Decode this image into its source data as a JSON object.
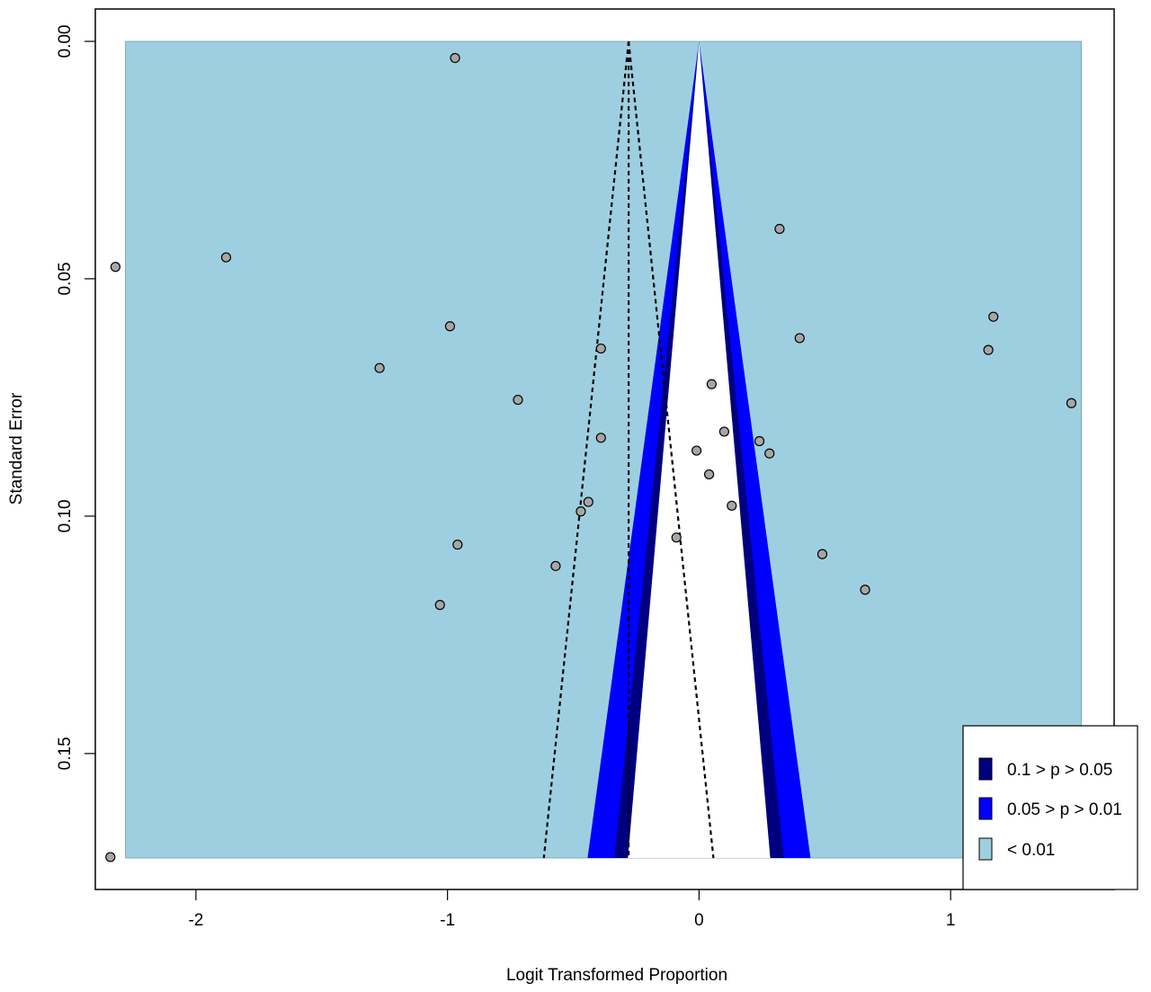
{
  "chart_data": {
    "type": "scatter",
    "subtype": "contour-enhanced funnel plot",
    "title": "",
    "xlabel": "Logit Transformed Proportion",
    "ylabel": "Standard Error",
    "xlim": [
      -2.4,
      1.65
    ],
    "ylim": [
      0.172,
      0
    ],
    "y_reversed": true,
    "x_ticks": [
      {
        "value": -2,
        "label": "-2"
      },
      {
        "value": -1,
        "label": "-1"
      },
      {
        "value": 0,
        "label": "0"
      },
      {
        "value": 1,
        "label": "1"
      }
    ],
    "y_ticks": [
      {
        "value": 0,
        "label": "0.00"
      },
      {
        "value": 0.05,
        "label": "0.05"
      },
      {
        "value": 0.1,
        "label": "0.10"
      },
      {
        "value": 0.15,
        "label": "0.15"
      }
    ],
    "funnel": {
      "center": 0,
      "se_max": 0.172,
      "x_range": [
        -2.28,
        1.52
      ],
      "z_values": {
        "p10": 1.645,
        "p05": 1.96,
        "p01": 2.576
      }
    },
    "pooled_estimate": {
      "x": -0.28,
      "line_style": "dotted",
      "ci_z": 1.96
    },
    "contours": [
      {
        "label": "0.1 > p > 0.05",
        "color": "#00007f"
      },
      {
        "label": "0.05 > p > 0.01",
        "color": "#0000ff"
      },
      {
        "label": "< 0.01",
        "color": "#9ecfe0"
      }
    ],
    "legend_position": "bottom-right",
    "colors": {
      "point_fill": "#a6a6a6",
      "inner_region": "#ffffff"
    },
    "points": [
      {
        "x": -0.97,
        "y": 0.0035
      },
      {
        "x": -2.32,
        "y": 0.0475
      },
      {
        "x": -1.88,
        "y": 0.0455
      },
      {
        "x": -0.99,
        "y": 0.06
      },
      {
        "x": -1.27,
        "y": 0.0688
      },
      {
        "x": -0.72,
        "y": 0.0755
      },
      {
        "x": -0.39,
        "y": 0.0647
      },
      {
        "x": -0.39,
        "y": 0.0835
      },
      {
        "x": -0.44,
        "y": 0.097
      },
      {
        "x": -0.47,
        "y": 0.099
      },
      {
        "x": -0.96,
        "y": 0.106
      },
      {
        "x": -0.57,
        "y": 0.1105
      },
      {
        "x": -1.03,
        "y": 0.1187
      },
      {
        "x": -0.09,
        "y": 0.1045
      },
      {
        "x": -0.01,
        "y": 0.0862
      },
      {
        "x": 0.04,
        "y": 0.0912
      },
      {
        "x": 0.05,
        "y": 0.0722
      },
      {
        "x": 0.1,
        "y": 0.0822
      },
      {
        "x": 0.13,
        "y": 0.0978
      },
      {
        "x": 0.24,
        "y": 0.0842
      },
      {
        "x": 0.28,
        "y": 0.0868
      },
      {
        "x": 0.32,
        "y": 0.0395
      },
      {
        "x": 0.4,
        "y": 0.0625
      },
      {
        "x": 0.49,
        "y": 0.108
      },
      {
        "x": 0.66,
        "y": 0.1155
      },
      {
        "x": 1.15,
        "y": 0.065
      },
      {
        "x": 1.17,
        "y": 0.058
      },
      {
        "x": 1.48,
        "y": 0.0762
      },
      {
        "x": -2.34,
        "y": 0.1718
      }
    ]
  }
}
